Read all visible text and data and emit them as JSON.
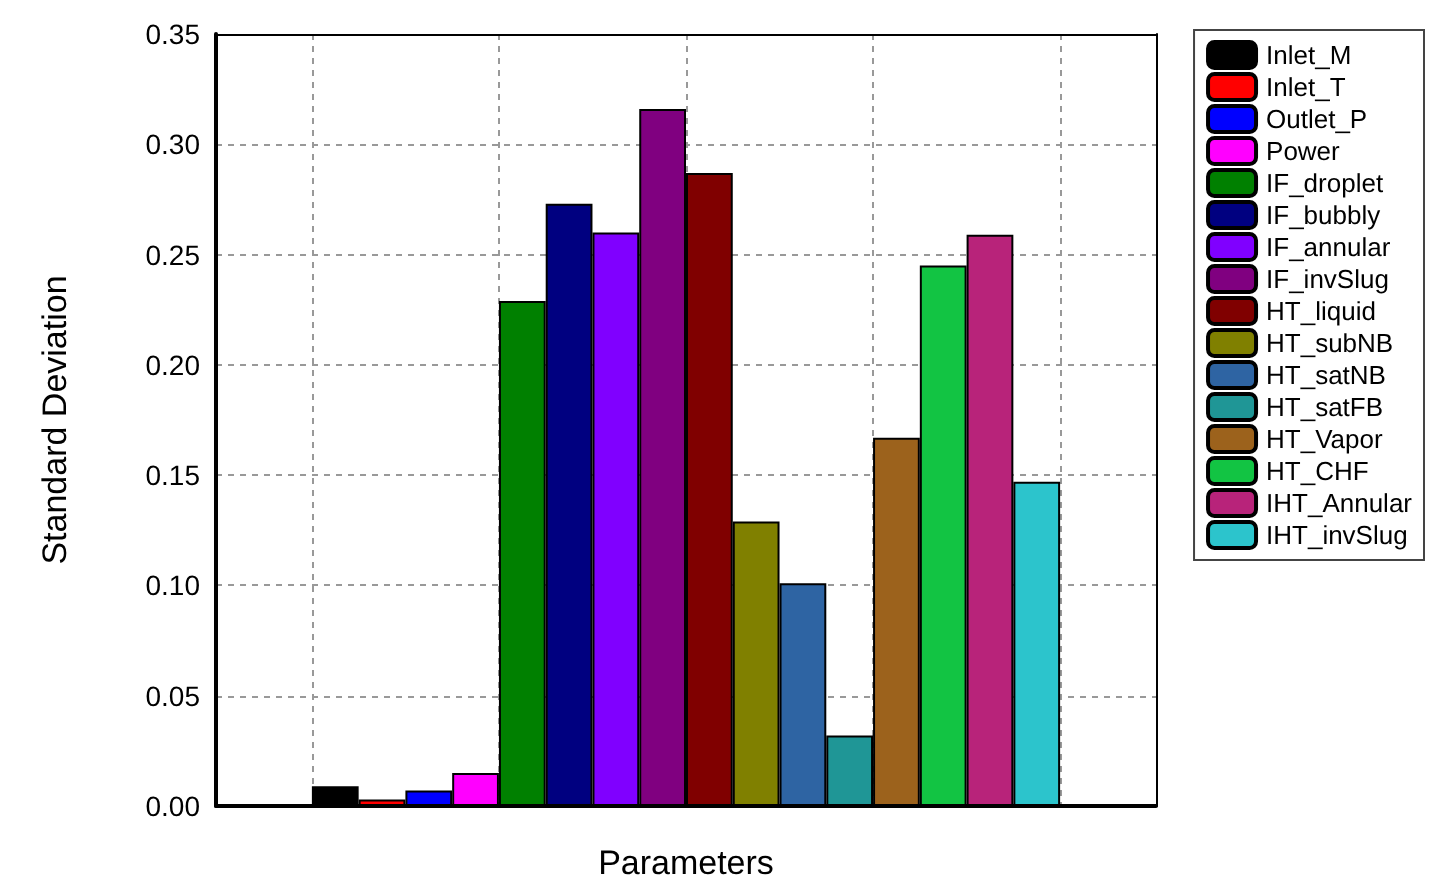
{
  "chart_data": {
    "type": "bar",
    "xlabel": "Parameters",
    "ylabel": "Standard Deviation",
    "categories": [
      null
    ],
    "ylim": [
      0,
      0.35
    ],
    "yticks": [
      {
        "value": 0,
        "label": "0.00"
      },
      {
        "value": 0.05,
        "label": "0.05"
      },
      {
        "value": 0.1,
        "label": "0.10"
      },
      {
        "value": 0.15,
        "label": "0.15"
      },
      {
        "value": 0.2,
        "label": "0.20"
      },
      {
        "value": 0.25,
        "label": "0.25"
      },
      {
        "value": 0.3,
        "label": "0.30"
      },
      {
        "value": 0.35,
        "label": "0.35"
      }
    ],
    "grid": true,
    "legend": "right",
    "series": [
      {
        "name": "Inlet_M",
        "color": "#000000",
        "values": [
          0.009
        ]
      },
      {
        "name": "Inlet_T",
        "color": "#ff0000",
        "values": [
          0.003
        ]
      },
      {
        "name": "Outlet_P",
        "color": "#0000ff",
        "values": [
          0.007
        ]
      },
      {
        "name": "Power",
        "color": "#ff00ff",
        "values": [
          0.015
        ]
      },
      {
        "name": "IF_droplet",
        "color": "#008000",
        "values": [
          0.229
        ]
      },
      {
        "name": "IF_bubbly",
        "color": "#000080",
        "values": [
          0.273
        ]
      },
      {
        "name": "IF_annular",
        "color": "#8000ff",
        "values": [
          0.26
        ]
      },
      {
        "name": "IF_invSlug",
        "color": "#800080",
        "values": [
          0.316
        ]
      },
      {
        "name": "HT_liquid",
        "color": "#800000",
        "values": [
          0.287
        ]
      },
      {
        "name": "HT_subNB",
        "color": "#808000",
        "values": [
          0.129
        ]
      },
      {
        "name": "HT_satNB",
        "color": "#2e64a3",
        "values": [
          0.101
        ]
      },
      {
        "name": "HT_satFB",
        "color": "#1f9696",
        "values": [
          0.032
        ]
      },
      {
        "name": "HT_Vapor",
        "color": "#9c621c",
        "values": [
          0.167
        ]
      },
      {
        "name": "HT_CHF",
        "color": "#12c443",
        "values": [
          0.245
        ]
      },
      {
        "name": "IHT_Annular",
        "color": "#b8237a",
        "values": [
          0.259
        ]
      },
      {
        "name": "IHT_invSlug",
        "color": "#2cc4cc",
        "values": [
          0.147
        ]
      }
    ]
  }
}
